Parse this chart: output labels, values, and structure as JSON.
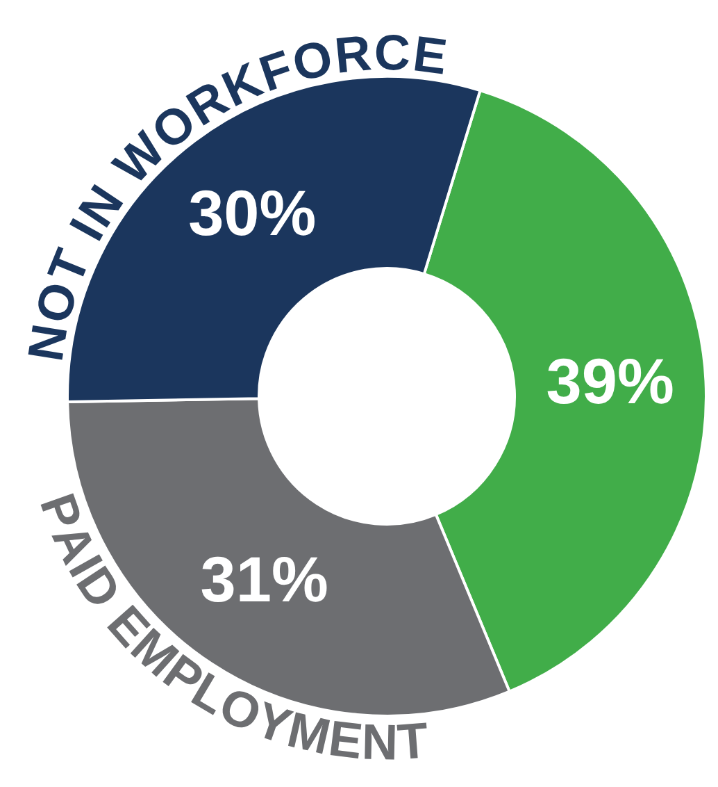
{
  "chart_data": {
    "type": "donut",
    "categories": [
      null,
      "PAID EMPLOYMENT",
      "NOT IN WORKFORCE"
    ],
    "values": [
      39,
      31,
      30
    ],
    "colors": [
      "#41ad49",
      "#6d6e71",
      "#1b365d"
    ],
    "value_labels": [
      "39%",
      "31%",
      "30%"
    ],
    "legend": false
  }
}
